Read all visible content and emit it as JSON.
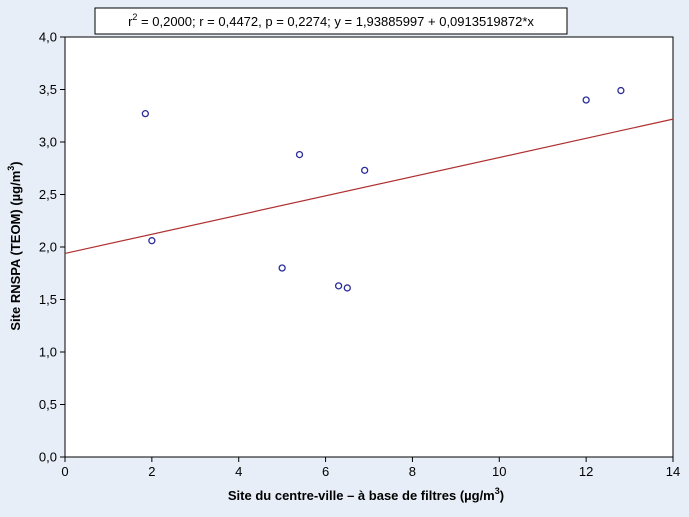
{
  "chart_data": {
    "type": "scatter",
    "annotation": {
      "r_sym": "r",
      "r_sup": "2",
      "rest": " = 0,2000; r = 0,4472, p = 0,2274; y = 1,93885997 + 0,0913519872*x"
    },
    "xlabel": {
      "main": "Site du centre-ville – à base de filtres (µg/m",
      "sup": "3",
      "tail": ")"
    },
    "ylabel": {
      "main": "Site RNSPA (TEOM) (µg/m",
      "sup": "3",
      "tail": ")"
    },
    "xlim": [
      0,
      14
    ],
    "ylim": [
      0,
      4
    ],
    "x_ticks": [
      0,
      2,
      4,
      6,
      8,
      10,
      12,
      14
    ],
    "x_tick_labels": [
      "0",
      "2",
      "4",
      "6",
      "8",
      "10",
      "12",
      "14"
    ],
    "y_ticks": [
      0,
      0.5,
      1,
      1.5,
      2,
      2.5,
      3,
      3.5,
      4
    ],
    "y_tick_labels": [
      "0,0",
      "0,5",
      "1,0",
      "1,5",
      "2,0",
      "2,5",
      "3,0",
      "3,5",
      "4,0"
    ],
    "points": [
      {
        "x": 1.85,
        "y": 3.27
      },
      {
        "x": 2.0,
        "y": 2.06
      },
      {
        "x": 5.0,
        "y": 1.8
      },
      {
        "x": 5.4,
        "y": 2.88
      },
      {
        "x": 6.3,
        "y": 1.63
      },
      {
        "x": 6.5,
        "y": 1.61
      },
      {
        "x": 6.9,
        "y": 2.73
      },
      {
        "x": 12.0,
        "y": 3.4
      },
      {
        "x": 12.8,
        "y": 3.49
      }
    ],
    "regression": {
      "intercept": 1.93885997,
      "slope": 0.0913519872
    },
    "grid": false,
    "colors": {
      "background": "#e8eef7",
      "plot_area": "#ffffff",
      "point": "#2b2b9a",
      "fit_line": "#b03030",
      "axis": "#000000"
    }
  }
}
